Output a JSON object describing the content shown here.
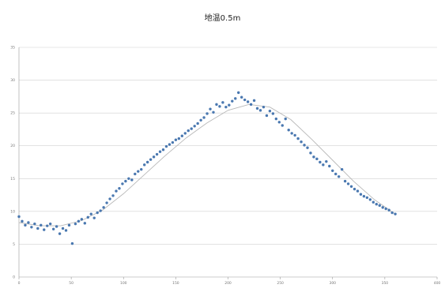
{
  "chart_data": {
    "type": "scatter",
    "title": "地温0.5m",
    "xlabel": "",
    "ylabel": "",
    "xlim": [
      0,
      400
    ],
    "ylim": [
      0,
      35
    ],
    "x_ticks": [
      0,
      50,
      100,
      150,
      200,
      250,
      300,
      350,
      400
    ],
    "y_ticks": [
      0,
      5,
      10,
      15,
      20,
      25,
      30,
      35
    ],
    "grid": "horizontal",
    "legend": "none",
    "colors": {
      "points": "#4a78b0",
      "trend": "#b8b8b8",
      "grid": "#d0d0d0",
      "axis": "#9a9a9a"
    },
    "series": [
      {
        "type": "scatter",
        "x": [
          0,
          3,
          6,
          9,
          12,
          15,
          18,
          21,
          24,
          27,
          30,
          33,
          36,
          39,
          42,
          45,
          48,
          51,
          54,
          57,
          60,
          63,
          66,
          69,
          72,
          75,
          78,
          81,
          84,
          87,
          90,
          93,
          96,
          99,
          102,
          105,
          108,
          111,
          114,
          117,
          120,
          123,
          126,
          129,
          132,
          135,
          138,
          141,
          144,
          147,
          150,
          153,
          156,
          159,
          162,
          165,
          168,
          171,
          174,
          177,
          180,
          183,
          186,
          189,
          192,
          195,
          198,
          201,
          204,
          207,
          210,
          213,
          216,
          219,
          222,
          225,
          228,
          231,
          234,
          237,
          240,
          243,
          246,
          249,
          252,
          255,
          258,
          261,
          264,
          267,
          270,
          273,
          276,
          279,
          282,
          285,
          288,
          291,
          294,
          297,
          300,
          303,
          306,
          309,
          312,
          315,
          318,
          321,
          324,
          327,
          330,
          333,
          336,
          339,
          342,
          345,
          348,
          351,
          354,
          357,
          360
        ],
        "y": [
          9.2,
          8.5,
          7.9,
          8.3,
          7.6,
          8.1,
          7.4,
          7.9,
          7.2,
          7.8,
          8.1,
          7.3,
          7.7,
          6.6,
          7.4,
          7.1,
          7.9,
          5.1,
          8.1,
          8.5,
          8.8,
          8.2,
          9.1,
          9.6,
          9.0,
          9.8,
          10.1,
          10.6,
          11.3,
          11.9,
          12.4,
          13.1,
          13.5,
          14.2,
          14.6,
          15.0,
          14.8,
          15.7,
          16.1,
          16.4,
          17.1,
          17.5,
          17.9,
          18.3,
          18.7,
          19.1,
          19.4,
          19.9,
          20.2,
          20.5,
          20.9,
          21.1,
          21.5,
          21.9,
          22.3,
          22.6,
          23.0,
          23.4,
          23.9,
          24.3,
          24.9,
          25.6,
          25.1,
          26.3,
          26.0,
          26.6,
          25.9,
          26.2,
          26.8,
          27.2,
          28.1,
          27.4,
          27.0,
          26.7,
          26.3,
          26.9,
          25.7,
          25.4,
          25.9,
          24.6,
          25.3,
          24.9,
          24.1,
          23.6,
          23.1,
          24.1,
          22.4,
          21.9,
          21.6,
          21.1,
          20.6,
          20.1,
          19.7,
          18.9,
          18.3,
          18.0,
          17.5,
          17.1,
          17.6,
          16.9,
          16.2,
          15.7,
          15.3,
          16.4,
          14.6,
          14.2,
          13.8,
          13.4,
          13.1,
          12.6,
          12.3,
          12.1,
          11.8,
          11.4,
          11.1,
          10.9,
          10.6,
          10.4,
          10.2,
          9.8,
          9.6
        ],
        "trend_x": [
          0,
          20,
          40,
          60,
          80,
          100,
          120,
          140,
          160,
          180,
          200,
          220,
          240,
          260,
          280,
          300,
          320,
          340,
          360
        ],
        "trend_y": [
          8.3,
          7.8,
          7.8,
          8.6,
          10.2,
          12.7,
          15.6,
          18.5,
          21.2,
          23.5,
          25.4,
          26.3,
          25.9,
          24.0,
          21.0,
          17.8,
          14.6,
          11.8,
          9.6
        ]
      }
    ]
  }
}
